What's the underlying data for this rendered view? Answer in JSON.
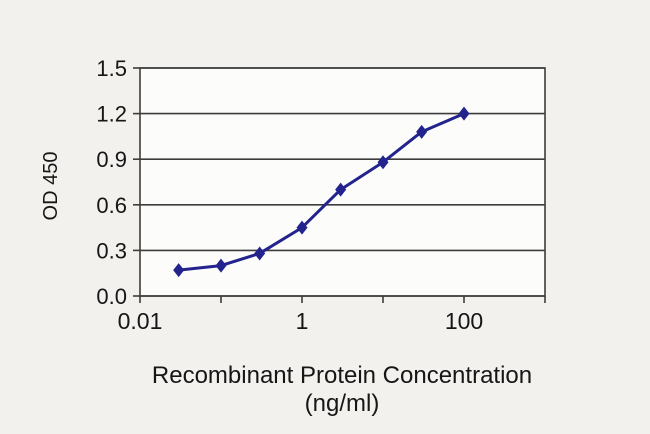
{
  "page": {
    "background": "#f2f1ee"
  },
  "chart_data": {
    "type": "line",
    "title": "",
    "xlabel": "Recombinant Protein Concentration",
    "xlabel_line2": "(ng/ml)",
    "ylabel": "OD 450",
    "x_scale": "log",
    "xlim": [
      0.01,
      1000
    ],
    "ylim": [
      0,
      1.5
    ],
    "y_ticks": [
      "0.0",
      "0.3",
      "0.6",
      "0.9",
      "1.2",
      "1.5"
    ],
    "x_tick_values": [
      0.01,
      1,
      100
    ],
    "x_tick_labels": [
      "0.01",
      "1",
      "100"
    ],
    "grid": "horizontal",
    "legend": "none",
    "marker": "diamond",
    "colors": {
      "line": "#23238e",
      "grid": "#3d3d3d",
      "text": "#161616",
      "plot_bg": "#fcfcfa"
    },
    "series": [
      {
        "name": "OD 450",
        "x": [
          0.03,
          0.1,
          0.3,
          1,
          3,
          10,
          30,
          100
        ],
        "y": [
          0.17,
          0.2,
          0.28,
          0.45,
          0.7,
          0.88,
          1.08,
          1.2
        ]
      }
    ]
  }
}
